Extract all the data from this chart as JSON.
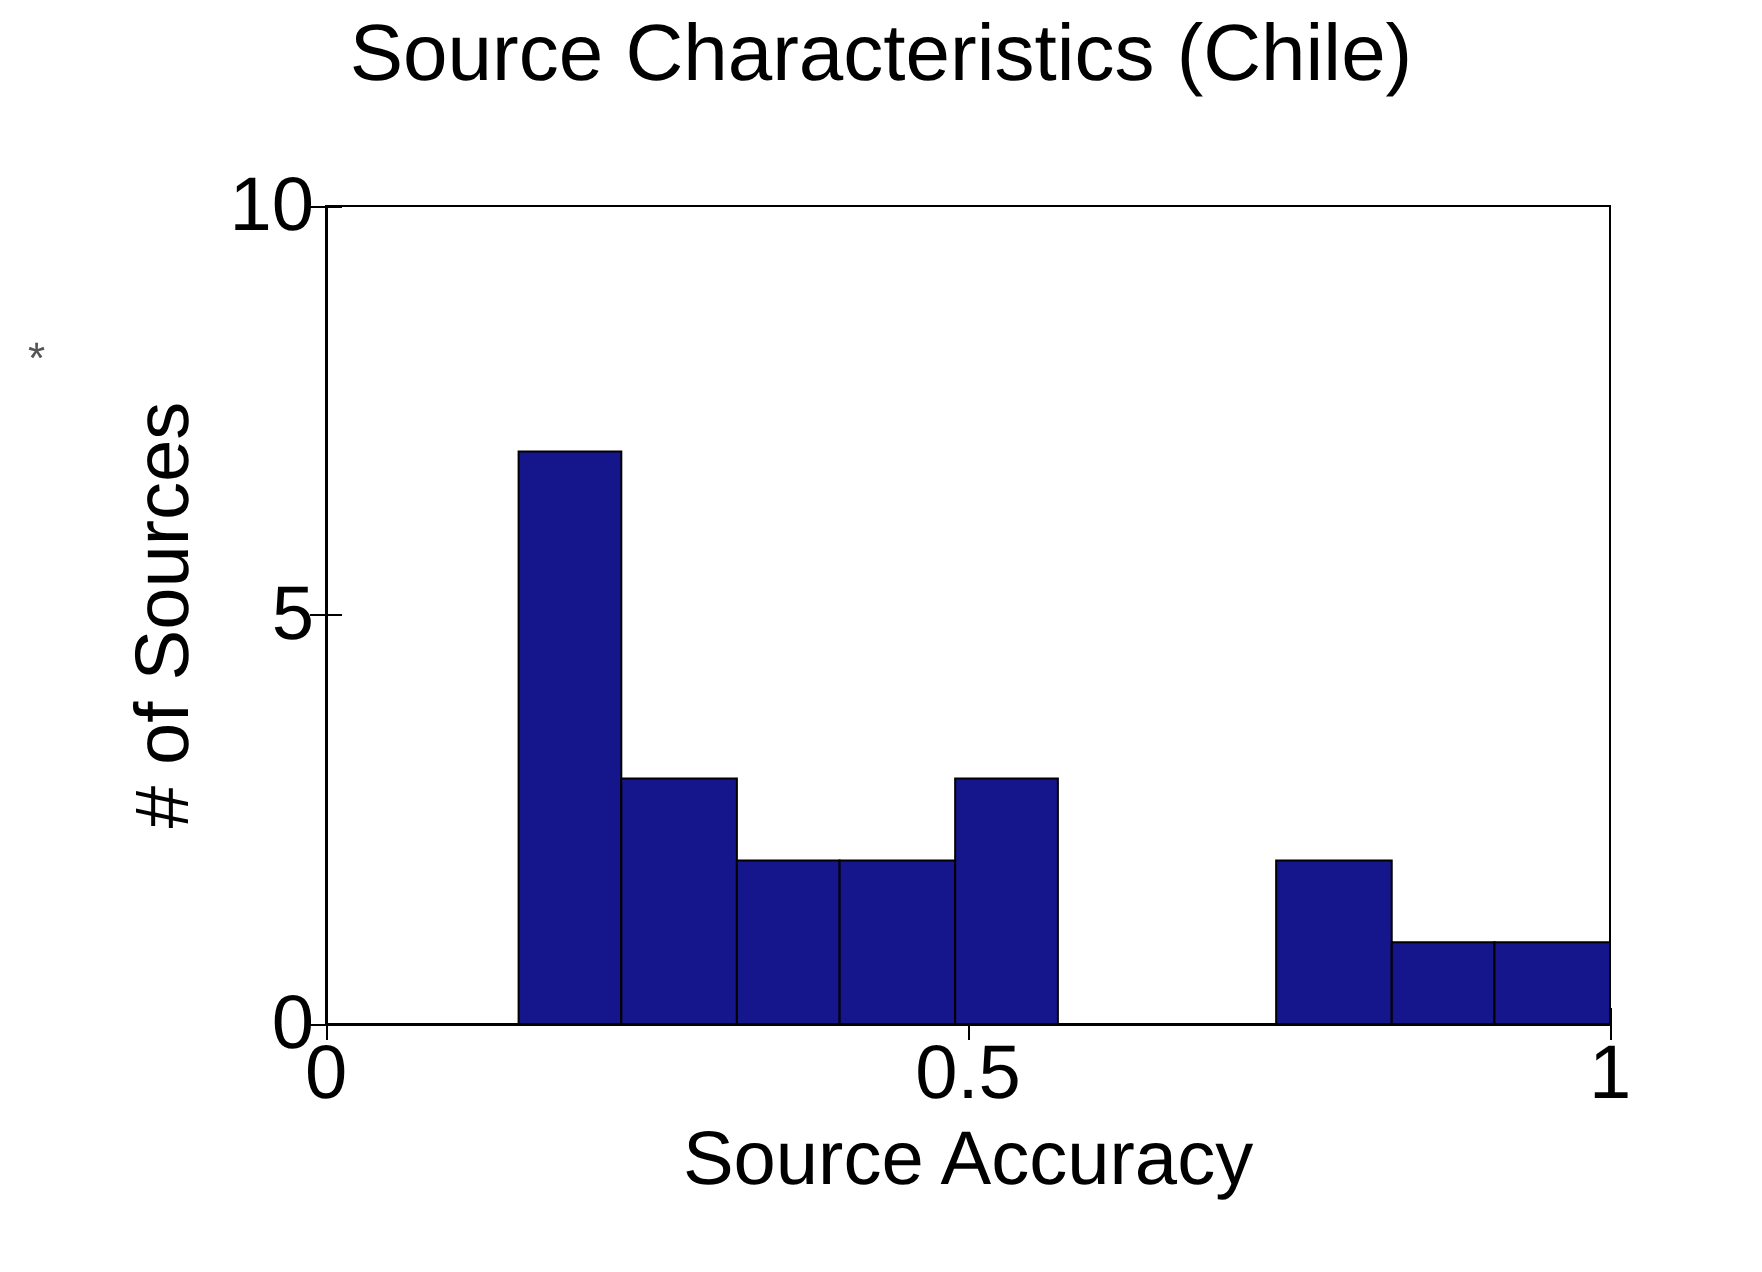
{
  "chart_data": {
    "type": "histogram",
    "title": "Source Characteristics (Chile)",
    "xlabel": "Source Accuracy",
    "ylabel": "# of Sources",
    "annotations": [
      "*"
    ],
    "bins": [
      0.15,
      0.23,
      0.32,
      0.4,
      0.49,
      0.57,
      0.74,
      0.83,
      0.91,
      1.0
    ],
    "values": [
      7,
      3,
      2,
      2,
      3,
      0,
      2,
      1,
      1
    ],
    "color": "#16168c",
    "xlim": [
      0,
      1
    ],
    "xticks": [
      0,
      0.5,
      1
    ],
    "ylim": [
      0,
      10
    ],
    "yticks": [
      0,
      5,
      10
    ],
    "grid": false
  }
}
